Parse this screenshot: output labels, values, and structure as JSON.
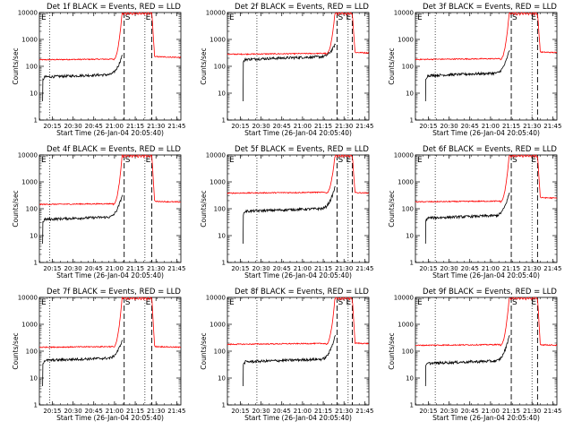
{
  "chart_data": {
    "type": "line",
    "xlabel": "Start Time (26-Jan-04 20:05:40)",
    "ylabel": "Counts/sec",
    "xlim": [
      "20:05:40",
      "21:48:00"
    ],
    "ylim": [
      1,
      10000
    ],
    "yscale": "log",
    "xtick_labels": [
      "20:15",
      "20:30",
      "20:45",
      "21:00",
      "21:15",
      "21:30",
      "21:45"
    ],
    "ytick_labels": [
      "1",
      "10",
      "100",
      "1000",
      "10000"
    ],
    "marker_labels": {
      "start": "E",
      "saa_start": "S",
      "saa_end": "E"
    },
    "series_colors": {
      "events": "#000000",
      "lld": "#ff0000"
    },
    "panels": [
      {
        "title": "Det 1f BLACK = Events, RED = LLD",
        "events_start": "20:08",
        "saa_start": "21:07",
        "saa_end": "21:27",
        "dotted": [
          "20:13",
          "21:22"
        ],
        "events": {
          "baseline": 40,
          "pre_saa_peak": 200,
          "post_saa": 0
        },
        "lld": {
          "baseline": 175,
          "post_saa": 230
        }
      },
      {
        "title": "Det 2f BLACK = Events, RED = LLD",
        "events_start": "20:17",
        "saa_start": "21:25",
        "saa_end": "21:36",
        "dotted": [
          "20:27",
          "21:33"
        ],
        "events": {
          "baseline": 180,
          "pre_saa_peak": 500,
          "post_saa": 0
        },
        "lld": {
          "baseline": 280,
          "post_saa": 330
        }
      },
      {
        "title": "Det 3f BLACK = Events, RED = LLD",
        "events_start": "20:13",
        "saa_start": "21:15",
        "saa_end": "21:34",
        "dotted": [
          "20:20",
          "21:30"
        ],
        "events": {
          "baseline": 45,
          "pre_saa_peak": 300,
          "post_saa": 0
        },
        "lld": {
          "baseline": 180,
          "post_saa": 340
        }
      },
      {
        "title": "Det 4f BLACK = Events, RED = LLD",
        "events_start": "20:08",
        "saa_start": "21:07",
        "saa_end": "21:27",
        "dotted": [
          "20:13",
          "21:22"
        ],
        "events": {
          "baseline": 40,
          "pre_saa_peak": 250,
          "post_saa": 0
        },
        "lld": {
          "baseline": 145,
          "post_saa": 190
        }
      },
      {
        "title": "Det 5f BLACK = Events, RED = LLD",
        "events_start": "20:17",
        "saa_start": "21:25",
        "saa_end": "21:36",
        "dotted": [
          "20:27",
          "21:33"
        ],
        "events": {
          "baseline": 80,
          "pre_saa_peak": 500,
          "post_saa": 0
        },
        "lld": {
          "baseline": 380,
          "post_saa": 400
        }
      },
      {
        "title": "Det 6f BLACK = Events, RED = LLD",
        "events_start": "20:13",
        "saa_start": "21:15",
        "saa_end": "21:34",
        "dotted": [
          "20:20",
          "21:30"
        ],
        "events": {
          "baseline": 45,
          "pre_saa_peak": 300,
          "post_saa": 0
        },
        "lld": {
          "baseline": 180,
          "post_saa": 260
        }
      },
      {
        "title": "Det 7f BLACK = Events, RED = LLD",
        "events_start": "20:08",
        "saa_start": "21:07",
        "saa_end": "21:27",
        "dotted": [
          "20:13",
          "21:22"
        ],
        "events": {
          "baseline": 45,
          "pre_saa_peak": 200,
          "post_saa": 0
        },
        "lld": {
          "baseline": 140,
          "post_saa": 150
        }
      },
      {
        "title": "Det 8f BLACK = Events, RED = LLD",
        "events_start": "20:17",
        "saa_start": "21:25",
        "saa_end": "21:36",
        "dotted": [
          "20:27",
          "21:33"
        ],
        "events": {
          "baseline": 40,
          "pre_saa_peak": 300,
          "post_saa": 0
        },
        "lld": {
          "baseline": 180,
          "post_saa": 200
        }
      },
      {
        "title": "Det 9f BLACK = Events, RED = LLD",
        "events_start": "20:13",
        "saa_start": "21:15",
        "saa_end": "21:34",
        "dotted": [
          "20:20",
          "21:30"
        ],
        "events": {
          "baseline": 35,
          "pre_saa_peak": 300,
          "post_saa": 0
        },
        "lld": {
          "baseline": 165,
          "post_saa": 175
        }
      }
    ]
  }
}
